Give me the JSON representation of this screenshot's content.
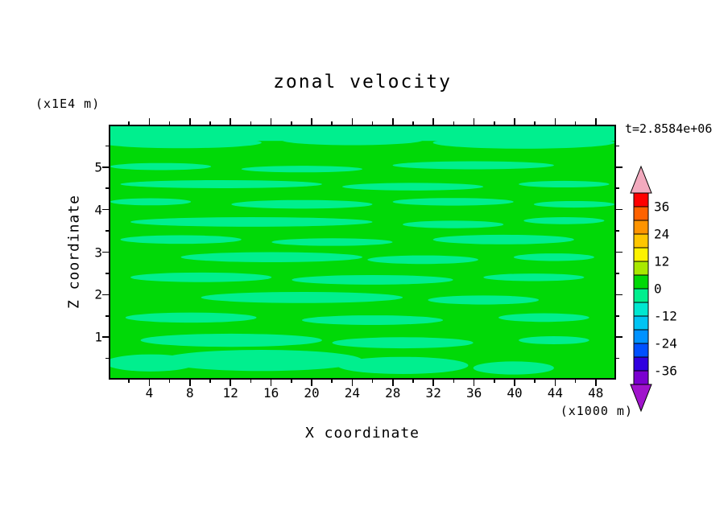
{
  "chart_data": {
    "type": "filled-contour",
    "title": "zonal velocity",
    "xlabel": "X coordinate",
    "ylabel": "Z coordinate",
    "x_units_label": "(x1000 m)",
    "y_units_label": "(x1E4 m)",
    "time_annotation": "t=2.8584e+06",
    "x_range": [
      0,
      50
    ],
    "y_range": [
      0,
      6
    ],
    "x_ticks": [
      4,
      8,
      12,
      16,
      20,
      24,
      28,
      32,
      36,
      40,
      44,
      48
    ],
    "x_minor_step": 2,
    "y_ticks": [
      1,
      2,
      3,
      4,
      5
    ],
    "y_minor_step": 0.5,
    "contour_interval": 6,
    "levels": [
      -42,
      -36,
      -30,
      -24,
      -18,
      -12,
      -6,
      0,
      6,
      12,
      18,
      24,
      30,
      36,
      42
    ],
    "colorbar_labels": [
      36,
      24,
      12,
      0,
      -12,
      -24,
      -36
    ],
    "band_colors_top_to_bottom": [
      "#ff0000",
      "#ff6200",
      "#ff9400",
      "#ffc600",
      "#fdf200",
      "#a8e800",
      "#00d907",
      "#00ef8e",
      "#00e7d0",
      "#00c4f3",
      "#0092ff",
      "#0050ff",
      "#3000e0",
      "#7a00d0"
    ],
    "over_arrow_color": "#f2aabe",
    "under_arrow_color": "#a014cc",
    "field": {
      "description": "Velocity field is near zero everywhere: background lies in the 0..6 band (green) with thin horizontal streak regions in the -6..0 band (spring green).",
      "background_color": "#00d907",
      "streak_color": "#00ef8e",
      "streak_rects_pct": [
        [
          0,
          0,
          100,
          5.8
        ]
      ],
      "streak_ellipses_pct": [
        [
          14,
          6.5,
          16,
          2.2
        ],
        [
          48,
          5.5,
          14,
          2.0
        ],
        [
          82,
          6.5,
          18,
          2.4
        ],
        [
          10,
          16,
          10,
          1.4
        ],
        [
          38,
          17,
          12,
          1.3
        ],
        [
          72,
          15.5,
          16,
          1.6
        ],
        [
          22,
          23,
          20,
          1.6
        ],
        [
          60,
          24,
          14,
          1.5
        ],
        [
          90,
          23,
          9,
          1.3
        ],
        [
          8,
          30,
          8,
          1.4
        ],
        [
          38,
          31,
          14,
          1.7
        ],
        [
          68,
          30,
          12,
          1.5
        ],
        [
          92,
          31,
          8,
          1.3
        ],
        [
          28,
          38,
          24,
          1.9
        ],
        [
          68,
          39,
          10,
          1.5
        ],
        [
          90,
          37.5,
          8,
          1.4
        ],
        [
          14,
          45,
          12,
          1.7
        ],
        [
          44,
          46,
          12,
          1.5
        ],
        [
          78,
          45,
          14,
          1.9
        ],
        [
          32,
          52,
          18,
          2.0
        ],
        [
          62,
          53,
          11,
          1.7
        ],
        [
          88,
          52,
          8,
          1.5
        ],
        [
          18,
          60,
          14,
          1.9
        ],
        [
          52,
          61,
          16,
          1.9
        ],
        [
          84,
          60,
          10,
          1.5
        ],
        [
          38,
          68,
          20,
          2.2
        ],
        [
          74,
          69,
          11,
          1.8
        ],
        [
          16,
          76,
          13,
          2.0
        ],
        [
          52,
          77,
          14,
          1.9
        ],
        [
          86,
          76,
          9,
          1.7
        ],
        [
          24,
          85,
          18,
          2.6
        ],
        [
          58,
          86,
          14,
          2.2
        ],
        [
          88,
          85,
          7,
          1.6
        ],
        [
          8,
          94,
          9,
          3.4
        ],
        [
          30,
          93,
          20,
          4.2
        ],
        [
          58,
          95,
          13,
          3.4
        ],
        [
          80,
          96,
          8,
          2.6
        ]
      ]
    }
  }
}
